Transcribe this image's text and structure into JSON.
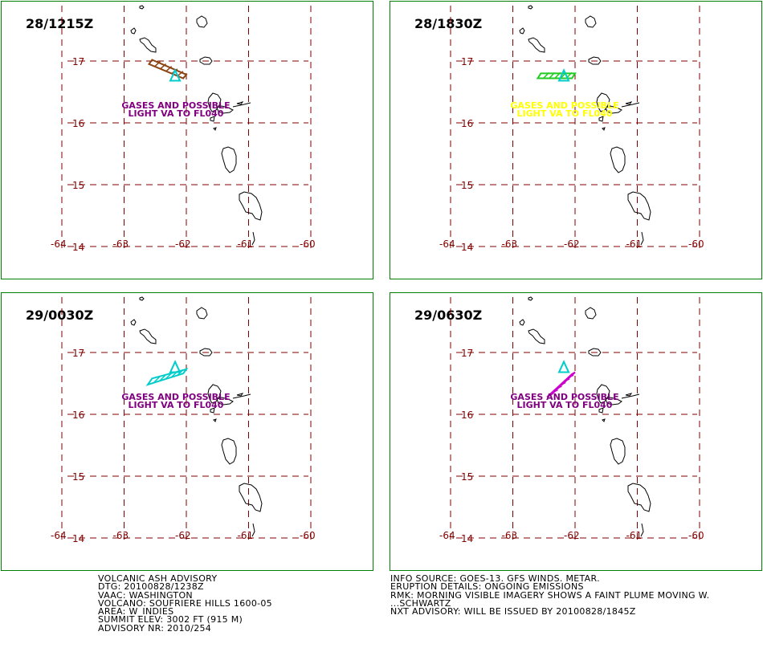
{
  "panels": [
    {
      "time": "28/1215Z",
      "text_color": "#800080",
      "plume_color": "#8B4513",
      "label_dx": 0,
      "va_text": [
        "GASES AND POSSIBLE",
        "LIGHT VA TO FL040"
      ],
      "plume": [
        [
          -62.6,
          16.95
        ],
        [
          -62.05,
          16.72
        ],
        [
          -62.0,
          16.78
        ],
        [
          -62.55,
          17.02
        ]
      ]
    },
    {
      "time": "28/1830Z",
      "text_color": "#FFFF00",
      "plume_color": "#22CC22",
      "label_dx": 0,
      "va_text": [
        "GASES AND POSSIBLE",
        "LIGHT VA TO FL040"
      ],
      "plume": [
        [
          -62.6,
          16.72
        ],
        [
          -62.05,
          16.72
        ],
        [
          -62.0,
          16.8
        ],
        [
          -62.55,
          16.8
        ]
      ]
    },
    {
      "time": "29/0030Z",
      "text_color": "#800080",
      "plume_color": "#00CCCC",
      "label_dx": 0,
      "va_text": [
        "GASES AND POSSIBLE",
        "LIGHT VA TO FL040"
      ],
      "plume": [
        [
          -62.62,
          16.48
        ],
        [
          -62.05,
          16.66
        ],
        [
          -62.0,
          16.73
        ],
        [
          -62.55,
          16.58
        ]
      ]
    },
    {
      "time": "29/0630Z",
      "text_color": "#800080",
      "plume_color": "#CC00CC",
      "label_dx": 0,
      "va_text": [
        "GASES AND POSSIBLE",
        "LIGHT VA TO FL040"
      ],
      "plume": [
        [
          -62.45,
          16.28
        ],
        [
          -62.05,
          16.65
        ],
        [
          -62.0,
          16.68
        ],
        [
          -62.38,
          16.32
        ]
      ]
    }
  ],
  "grid": {
    "lons": [
      -64,
      -63,
      -62,
      -61,
      -60
    ],
    "lats": [
      17,
      16,
      15,
      14
    ],
    "lon_labels": [
      "-64",
      "-63",
      "-62",
      "-61",
      "-60"
    ],
    "lat_labels": [
      "17",
      "16",
      "15",
      "14"
    ],
    "line_color": "#800000"
  },
  "volcano": {
    "lon": -62.18,
    "lat": 16.72,
    "color": "#00CCCC"
  },
  "advisory_left": [
    "VOLCANIC ASH ADVISORY",
    "DTG: 20100828/1238Z",
    "VAAC: WASHINGTON",
    "VOLCANO: SOUFRIERE HILLS 1600-05",
    "AREA: W_INDIES",
    "SUMMIT ELEV: 3002 FT (915 M)",
    "ADVISORY NR: 2010/254"
  ],
  "advisory_right": [
    "INFO SOURCE: GOES-13. GFS WINDS. METAR.",
    "ERUPTION DETAILS: ONGOING EMISSIONS",
    "RMK: MORNING VISIBLE IMAGERY SHOWS A FAINT PLUME MOVING W.",
    "...SCHWARTZ",
    "NXT ADVISORY: WILL BE ISSUED BY 20100828/1845Z"
  ]
}
